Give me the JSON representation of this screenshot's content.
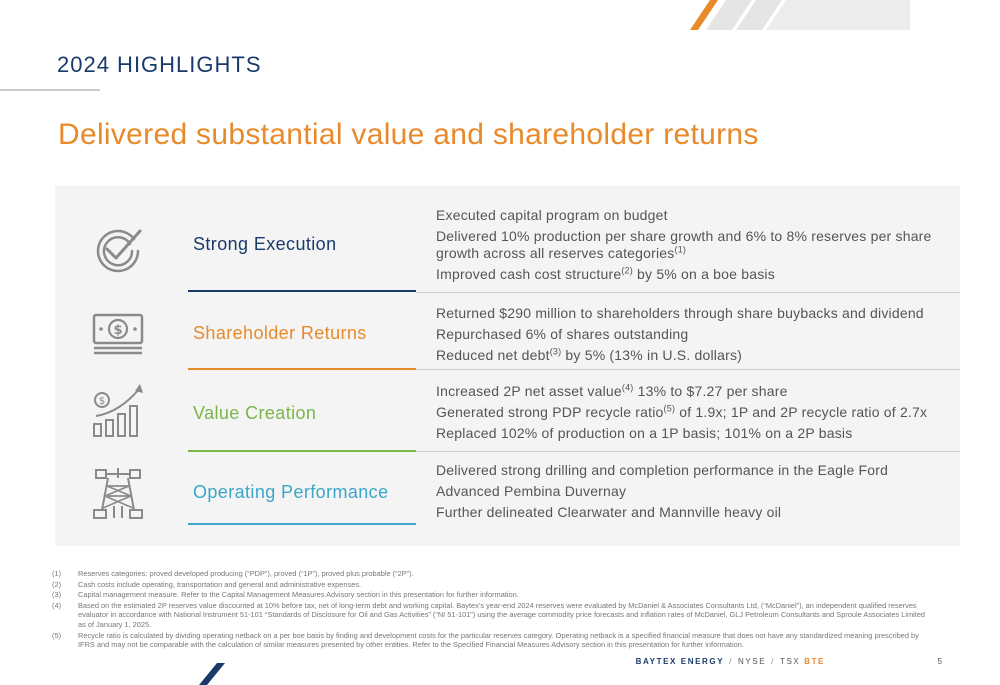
{
  "header": {
    "section_label": "2024 HIGHLIGHTS",
    "headline": "Delivered substantial value and shareholder returns"
  },
  "highlights": [
    {
      "icon": "checkmark-gauge-icon",
      "category": "Strong Execution",
      "accent_color": "#1a3a6b",
      "bullets": [
        {
          "text": "Executed capital program on budget",
          "sup": "",
          "rest": ""
        },
        {
          "text": "Delivered 10% production per share growth and 6% to 8% reserves per share growth across all reserves categories",
          "sup": "(1)",
          "rest": ""
        },
        {
          "text": "Improved cash cost structure",
          "sup": "(2)",
          "rest": " by 5% on a boe basis"
        }
      ]
    },
    {
      "icon": "money-stack-icon",
      "category": "Shareholder Returns",
      "accent_color": "#e8892a",
      "bullets": [
        {
          "text": "Returned $290 million to shareholders through share buybacks and dividend",
          "sup": "",
          "rest": ""
        },
        {
          "text": "Repurchased 6% of shares outstanding",
          "sup": "",
          "rest": ""
        },
        {
          "text": "Reduced net debt",
          "sup": "(3)",
          "rest": " by 5% (13% in U.S. dollars)"
        }
      ]
    },
    {
      "icon": "growth-chart-icon",
      "category": "Value Creation",
      "accent_color": "#7ab648",
      "bullets": [
        {
          "text": "Increased 2P net asset value",
          "sup": "(4)",
          "rest": " 13% to $7.27 per share"
        },
        {
          "text": "Generated strong PDP recycle ratio",
          "sup": "(5)",
          "rest": " of 1.9x; 1P and 2P recycle ratio of 2.7x"
        },
        {
          "text": "Replaced 102% of production on a 1P basis; 101% on a 2P basis",
          "sup": "",
          "rest": ""
        }
      ]
    },
    {
      "icon": "drilling-rig-icon",
      "category": "Operating Performance",
      "accent_color": "#3aa6c9",
      "bullets": [
        {
          "text": "Delivered strong drilling and completion performance in the Eagle Ford",
          "sup": "",
          "rest": ""
        },
        {
          "text": "Advanced Pembina Duvernay",
          "sup": "",
          "rest": ""
        },
        {
          "text": "Further delineated Clearwater and Mannville heavy oil",
          "sup": "",
          "rest": ""
        }
      ]
    }
  ],
  "footnotes": [
    {
      "num": "(1)",
      "text": "Reserves categories:  proved developed producing (“PDP”), proved (“1P”), proved plus probable (“2P”)."
    },
    {
      "num": "(2)",
      "text": "Cash costs include operating, transportation and general and administrative expenses."
    },
    {
      "num": "(3)",
      "text": "Capital management measure. Refer to the Capital Management Measures Advisory section in this presentation for further information."
    },
    {
      "num": "(4)",
      "text": "Based on the estimated 2P reserves value discounted at 10% before tax, net of long-term debt and working capital. Baytex’s year-end 2024 reserves were evaluated by McDaniel & Associates Consultants Ltd, (“McDaniel”), an independent qualified reserves evaluator in accordance with National Instrument 51-101 “Standards of Disclosure for Oil and Gas Activities” (“NI 51-101”) using the average commodity price forecasts and inflation rates of McDaniel, GLJ Petroleum Consultants and Sproule Associates Limited as of January 1, 2025."
    },
    {
      "num": "(5)",
      "text": "Recycle ratio is calculated by dividing operating netback on a per boe basis by finding and development costs for the particular reserves category. Operating netback is a specified financial measure that does not have any standardized meaning prescribed by IFRS and may not be comparable with the calculation of similar measures presented by other entities. Refer to the Specified Financial Measures Advisory section in this presentation for further information."
    }
  ],
  "footer": {
    "company": "BAYTEX ENERGY",
    "sep": "/",
    "exchange_nyse": "NYSE",
    "exchange_tsx": "TSX",
    "ticker": "BTE",
    "page_number": "5"
  },
  "colors": {
    "navy": "#1a3a6b",
    "orange": "#e8892a",
    "green": "#7ab648",
    "teal": "#3aa6c9",
    "icon_gray": "#8a8a8a"
  }
}
